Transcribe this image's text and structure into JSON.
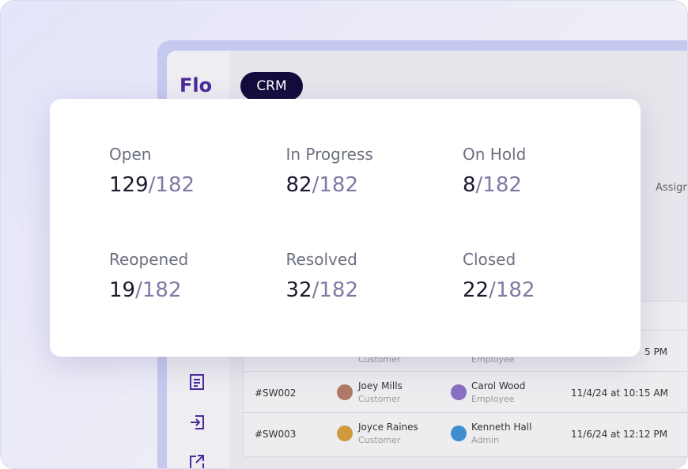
{
  "app": {
    "logo": "Flo",
    "tab": "CRM",
    "search_hint": "Assign"
  },
  "stats": [
    {
      "label": "Open",
      "value": 129,
      "total": "/182"
    },
    {
      "label": "In Progress",
      "value": 82,
      "total": "/182"
    },
    {
      "label": "On Hold",
      "value": 8,
      "total": "/182"
    },
    {
      "label": "Reopened",
      "value": 19,
      "total": "/182"
    },
    {
      "label": "Resolved",
      "value": 32,
      "total": "/182"
    },
    {
      "label": "Closed",
      "value": 22,
      "total": "/182"
    }
  ],
  "table": {
    "partial_row": {
      "customer_role": "Customer",
      "employee_role": "Employee",
      "time": "5 PM"
    },
    "rows": [
      {
        "id": "#SW002",
        "customer": "Joey Mills",
        "customer_role": "Customer",
        "employee": "Carol Wood",
        "employee_role": "Employee",
        "time": "11/4/24 at 10:15 AM"
      },
      {
        "id": "#SW003",
        "customer": "Joyce Raines",
        "customer_role": "Customer",
        "employee": "Kenneth Hall",
        "employee_role": "Admin",
        "time": "11/6/24 at 12:12 PM"
      }
    ]
  }
}
